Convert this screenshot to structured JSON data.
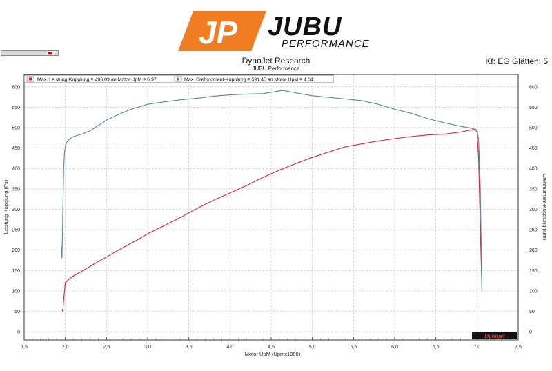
{
  "logo": {
    "mark": "JP",
    "name": "JUBU",
    "tagline": "PERFORMANCE",
    "colors": {
      "orange": "#f07d22",
      "black": "#111111"
    }
  },
  "header": {
    "title": "DynoJet Research",
    "subtitle": "JUBU Performance",
    "kf_label": "Kf: EG Glätten: 5"
  },
  "chart_data": {
    "type": "line",
    "xlabel": "Motor UpM (Upmx1000)",
    "ylabel_left": "Leistung-Kupplung (Ps)",
    "ylabel_right": "Drehmoment-Kupplung (Nm)",
    "xlim": [
      1.5,
      7.5
    ],
    "ylim": [
      -20,
      630
    ],
    "x_ticks": [
      "1,5",
      "2,0",
      "2,5",
      "3,0",
      "3,5",
      "4,0",
      "4,5",
      "5,0",
      "5,5",
      "6,0",
      "6,5",
      "7,0",
      "7,5"
    ],
    "x_tick_values": [
      1.5,
      2.0,
      2.5,
      3.0,
      3.5,
      4.0,
      4.5,
      5.0,
      5.5,
      6.0,
      6.5,
      7.0,
      7.5
    ],
    "y_ticks": [
      "0",
      "50",
      "100",
      "150",
      "200",
      "250",
      "300",
      "350",
      "400",
      "450",
      "500",
      "550",
      "600"
    ],
    "y_tick_values": [
      0,
      50,
      100,
      150,
      200,
      250,
      300,
      350,
      400,
      450,
      500,
      550,
      600
    ],
    "grid": true,
    "legend_position": "top-left",
    "series": [
      {
        "name": "Max. Leistung-Kupplung = 496,09 an Motor UpM = 6,97",
        "color": "#cc2233",
        "x": [
          1.96,
          1.97,
          1.98,
          1.99,
          2.0,
          2.05,
          2.1,
          2.2,
          2.3,
          2.4,
          2.5,
          2.6,
          2.7,
          2.8,
          2.9,
          3.0,
          3.2,
          3.4,
          3.6,
          3.8,
          4.0,
          4.2,
          4.4,
          4.6,
          4.8,
          5.0,
          5.2,
          5.4,
          5.6,
          5.8,
          6.0,
          6.2,
          6.4,
          6.6,
          6.8,
          6.9,
          6.97,
          7.0,
          7.02,
          7.04,
          7.06
        ],
        "y": [
          55,
          50,
          80,
          100,
          120,
          130,
          137,
          148,
          160,
          172,
          183,
          195,
          206,
          217,
          228,
          240,
          260,
          280,
          302,
          322,
          340,
          358,
          378,
          396,
          412,
          427,
          440,
          453,
          460,
          467,
          473,
          478,
          482,
          484,
          489,
          493,
          496,
          490,
          420,
          250,
          100
        ]
      },
      {
        "name": "Max. Drehmoment-Kupplung = 591,45 an Motor UpM = 4,64",
        "color": "#5a84a8",
        "x": [
          1.95,
          1.96,
          1.97,
          1.98,
          1.99,
          2.0,
          2.02,
          2.05,
          2.1,
          2.2,
          2.3,
          2.4,
          2.5,
          2.6,
          2.8,
          3.0,
          3.2,
          3.4,
          3.6,
          3.8,
          4.0,
          4.2,
          4.4,
          4.64,
          4.8,
          5.0,
          5.2,
          5.4,
          5.6,
          5.8,
          6.0,
          6.2,
          6.4,
          6.6,
          6.8,
          6.9,
          7.0,
          7.02,
          7.04,
          7.06
        ],
        "y": [
          210,
          180,
          300,
          400,
          440,
          455,
          465,
          472,
          478,
          484,
          492,
          505,
          518,
          528,
          545,
          557,
          563,
          568,
          572,
          577,
          580,
          582,
          583,
          591,
          585,
          578,
          574,
          570,
          566,
          557,
          545,
          535,
          522,
          512,
          503,
          500,
          495,
          470,
          350,
          100
        ]
      }
    ]
  },
  "branding": {
    "dynojet_badge": "Dynojet"
  }
}
